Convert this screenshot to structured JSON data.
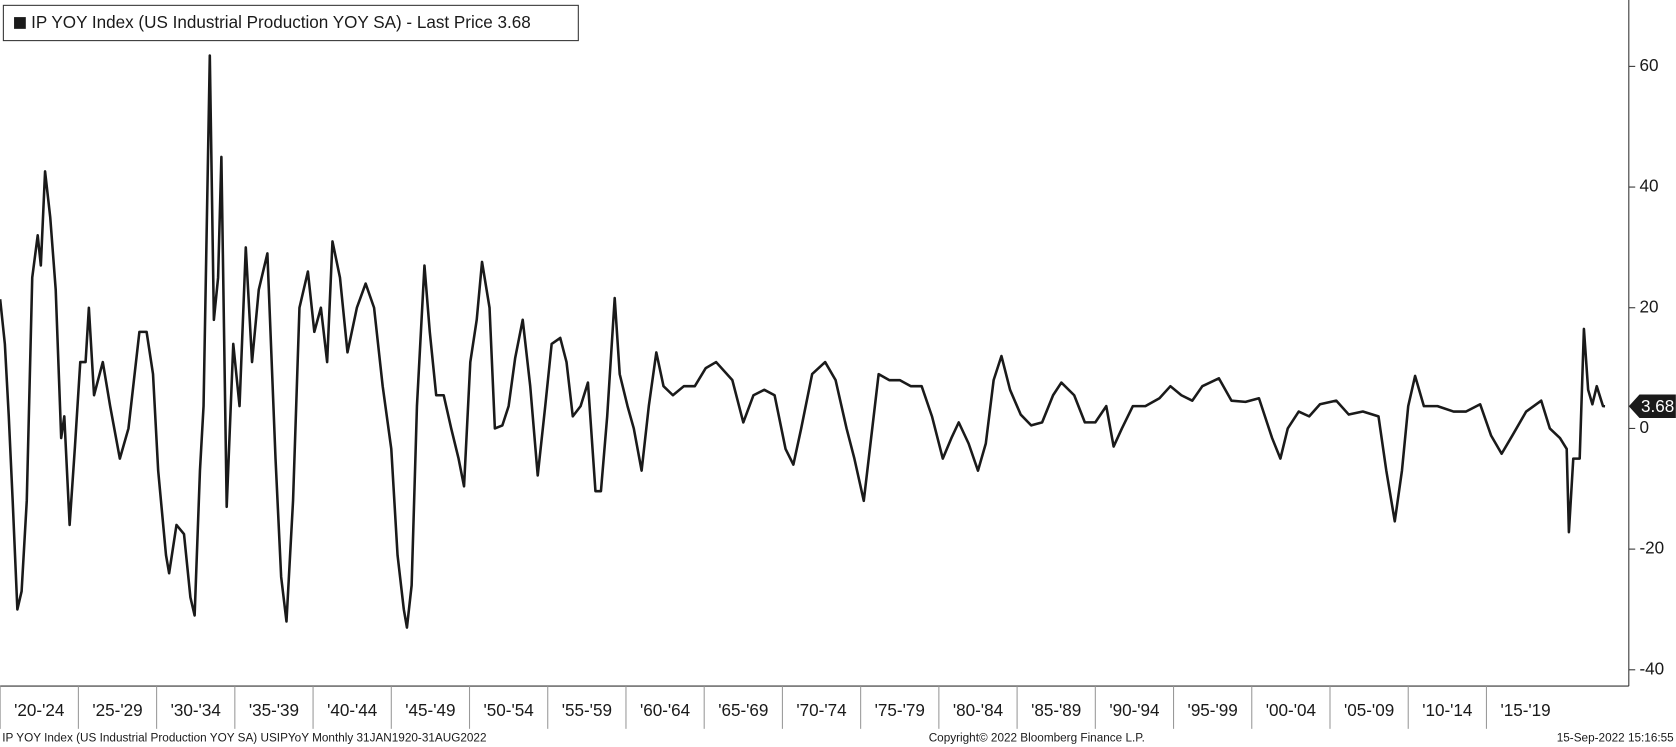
{
  "chart_data": {
    "type": "line",
    "title": "IP YOY Index (US Industrial Production YOY SA) - Last Price 3.68",
    "footer_left": "IP YOY Index (US Industrial Production YOY SA) USIPYoY  Monthly 31JAN1920-31AUG2022",
    "footer_center": "Copyright© 2022 Bloomberg Finance L.P.",
    "footer_right": "15-Sep-2022 15:16:55",
    "last_price": 3.68,
    "color": "#1a1a1a",
    "xlim": [
      1920,
      2024.1
    ],
    "ylim": [
      -42.7,
      71
    ],
    "yticks": [
      -40,
      -20,
      0,
      20,
      40,
      60
    ],
    "xticks": [
      {
        "value": 1920,
        "label": "'20-'24"
      },
      {
        "value": 1925,
        "label": "'25-'29"
      },
      {
        "value": 1930,
        "label": "'30-'34"
      },
      {
        "value": 1935,
        "label": "'35-'39"
      },
      {
        "value": 1940,
        "label": "'40-'44"
      },
      {
        "value": 1945,
        "label": "'45-'49"
      },
      {
        "value": 1950,
        "label": "'50-'54"
      },
      {
        "value": 1955,
        "label": "'55-'59"
      },
      {
        "value": 1960,
        "label": "'60-'64"
      },
      {
        "value": 1965,
        "label": "'65-'69"
      },
      {
        "value": 1970,
        "label": "'70-'74"
      },
      {
        "value": 1975,
        "label": "'75-'79"
      },
      {
        "value": 1980,
        "label": "'80-'84"
      },
      {
        "value": 1985,
        "label": "'85-'89"
      },
      {
        "value": 1990,
        "label": "'90-'94"
      },
      {
        "value": 1995,
        "label": "'95-'99"
      },
      {
        "value": 2000,
        "label": "'00-'04"
      },
      {
        "value": 2005,
        "label": "'05-'09"
      },
      {
        "value": 2010,
        "label": "'10-'14"
      },
      {
        "value": 2015,
        "label": "'15-'19"
      }
    ],
    "x": [
      1920.0,
      1920.3,
      1920.55,
      1920.8,
      1921.1,
      1921.37,
      1921.7,
      1922.05,
      1922.4,
      1922.6,
      1922.87,
      1923.2,
      1923.55,
      1923.9,
      1924.1,
      1924.44,
      1924.78,
      1925.12,
      1925.46,
      1925.67,
      1926.0,
      1926.56,
      1927.03,
      1927.65,
      1928.2,
      1928.9,
      1929.36,
      1929.77,
      1930.1,
      1930.6,
      1930.8,
      1931.27,
      1931.75,
      1932.16,
      1932.43,
      1932.77,
      1933.0,
      1933.4,
      1933.66,
      1933.93,
      1934.14,
      1934.48,
      1934.9,
      1935.3,
      1935.7,
      1936.1,
      1936.53,
      1937.08,
      1937.6,
      1937.96,
      1938.3,
      1938.72,
      1939.13,
      1939.67,
      1940.08,
      1940.5,
      1940.9,
      1941.24,
      1941.72,
      1942.2,
      1942.8,
      1943.36,
      1943.9,
      1944.45,
      1945.0,
      1945.4,
      1945.8,
      1946.0,
      1946.3,
      1946.64,
      1947.12,
      1947.46,
      1947.87,
      1948.35,
      1948.83,
      1949.3,
      1949.65,
      1950.05,
      1950.46,
      1950.8,
      1951.28,
      1951.62,
      1952.1,
      1952.5,
      1952.92,
      1953.4,
      1953.88,
      1954.36,
      1954.84,
      1955.25,
      1955.8,
      1956.2,
      1956.6,
      1957.1,
      1957.57,
      1958.05,
      1958.4,
      1958.8,
      1959.28,
      1959.6,
      1960.1,
      1960.5,
      1961.0,
      1961.46,
      1961.94,
      1962.4,
      1963.0,
      1963.7,
      1964.4,
      1965.1,
      1965.76,
      1966.8,
      1967.5,
      1968.15,
      1968.84,
      1969.5,
      1970.2,
      1970.7,
      1971.2,
      1971.9,
      1972.73,
      1973.4,
      1974.1,
      1974.6,
      1975.2,
      1975.67,
      1976.15,
      1976.83,
      1977.5,
      1978.2,
      1978.9,
      1979.56,
      1980.25,
      1980.8,
      1981.27,
      1981.9,
      1982.5,
      1983.0,
      1983.5,
      1984.0,
      1984.55,
      1985.23,
      1985.9,
      1986.6,
      1987.3,
      1987.83,
      1988.65,
      1989.33,
      1990.0,
      1990.7,
      1991.17,
      1991.7,
      1992.4,
      1993.2,
      1994.1,
      1994.8,
      1995.5,
      1996.2,
      1996.84,
      1997.9,
      1998.7,
      1999.6,
      2000.46,
      2001.3,
      2001.83,
      2002.3,
      2003.0,
      2003.67,
      2004.36,
      2005.4,
      2006.2,
      2007.1,
      2008.1,
      2008.6,
      2009.14,
      2009.6,
      2010.0,
      2010.44,
      2011.0,
      2011.87,
      2012.9,
      2013.7,
      2014.6,
      2015.3,
      2015.97,
      2016.65,
      2017.54,
      2018.5,
      2019.05,
      2019.7,
      2020.13,
      2020.27,
      2020.55,
      2020.96,
      2021.23,
      2021.5,
      2021.77,
      2022.05,
      2022.45,
      2022.58
    ],
    "values": [
      21.4,
      14,
      2,
      -12,
      -30,
      -27,
      -12,
      25,
      32,
      27,
      42.6,
      35,
      23,
      -1.6,
      2,
      -16,
      -3,
      11,
      11,
      20,
      5.5,
      11,
      3.7,
      -5,
      0,
      16,
      16,
      9,
      -7,
      -21,
      -24,
      -16,
      -17.5,
      -28,
      -31,
      -7,
      3.7,
      61.8,
      18,
      25,
      45,
      -13,
      14,
      3.7,
      30,
      11,
      23,
      29,
      -5,
      -24.6,
      -32,
      -12,
      20,
      26,
      16,
      20,
      11,
      31,
      25,
      12.6,
      20,
      24,
      20,
      7,
      -3.4,
      -21,
      -30,
      -33,
      -26,
      3.7,
      27,
      16,
      5.5,
      5.5,
      0,
      -5,
      -9.6,
      11,
      18,
      27.6,
      20,
      0,
      0.5,
      3.7,
      11.7,
      18,
      7,
      -7.8,
      3.7,
      14,
      15,
      11,
      2,
      3.7,
      7.6,
      -10.4,
      -10.4,
      2,
      21.6,
      9,
      3.7,
      0,
      -7,
      3.7,
      12.6,
      7,
      5.5,
      7,
      7,
      10,
      11,
      8,
      1,
      5.5,
      6.4,
      5.5,
      -3.4,
      -6,
      0,
      9,
      11,
      8,
      0,
      -5,
      -12,
      -1.6,
      9,
      8,
      8,
      7,
      7,
      2,
      -5,
      -1.6,
      1,
      -2.5,
      -7,
      -2.5,
      8,
      12,
      6.4,
      2.3,
      0.5,
      1,
      5.5,
      7.6,
      5.5,
      1,
      1,
      3.7,
      -3,
      0,
      3.7,
      3.7,
      5,
      7,
      5.5,
      4.6,
      7,
      8.3,
      4.6,
      4.4,
      5,
      -1.6,
      -5,
      0,
      2.8,
      2,
      4,
      4.6,
      2.3,
      2.8,
      2,
      -7,
      -15.4,
      -7,
      3.7,
      8.7,
      3.7,
      3.7,
      2.8,
      2.8,
      4,
      -1.2,
      -4.2,
      -1.2,
      2.8,
      4.6,
      0,
      -1.6,
      -3.4,
      -17.2,
      -5,
      -5,
      16.5,
      6.4,
      4,
      7,
      3.7,
      3.68
    ]
  }
}
